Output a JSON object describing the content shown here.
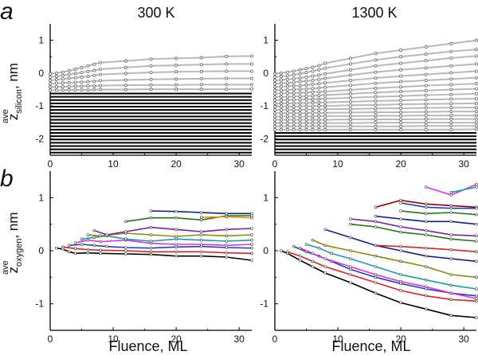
{
  "figure": {
    "panel_a": "a",
    "panel_b": "b",
    "col_left": "300 K",
    "col_right": "1300 K",
    "ylabel_a_main": "z",
    "ylabel_a_sup": "ave",
    "ylabel_a_sub": "silicon",
    "ylabel_a_unit": ", nm",
    "ylabel_b_main": "z",
    "ylabel_b_sup": "ave",
    "ylabel_b_sub": "oxygen",
    "ylabel_b_unit": ", nm",
    "xlabel_left": "Fluence, ML",
    "xlabel_right": "Fluence, ML"
  },
  "chart_data": [
    {
      "type": "line",
      "id": "a-300K",
      "xlim": [
        0,
        32
      ],
      "ylim": [
        -2.5,
        1.5
      ],
      "xticks": [
        0,
        10,
        20,
        30
      ],
      "yticks": [
        -2,
        -1,
        0,
        1
      ],
      "x": [
        0,
        1,
        2,
        3,
        4,
        5,
        6,
        7,
        8,
        12,
        16,
        20,
        24,
        28,
        32
      ],
      "black_levels": [
        -0.62,
        -0.72,
        -0.82,
        -0.92,
        -1.02,
        -1.12,
        -1.22,
        -1.32,
        -1.42,
        -1.52,
        -1.62,
        -1.72,
        -1.82,
        -1.92,
        -2.02,
        -2.12,
        -2.22,
        -2.32,
        -2.42
      ],
      "gray_series": [
        {
          "y": [
            -0.02,
            0.0,
            0.03,
            0.07,
            0.12,
            0.17,
            0.22,
            0.27,
            0.32,
            0.37,
            0.43,
            0.45,
            0.47,
            0.51,
            0.52
          ]
        },
        {
          "y": [
            -0.12,
            -0.1,
            -0.07,
            -0.04,
            -0.01,
            0.02,
            0.05,
            0.08,
            0.12,
            0.17,
            0.22,
            0.24,
            0.26,
            0.28,
            0.28
          ]
        },
        {
          "y": [
            -0.22,
            -0.2,
            -0.18,
            -0.16,
            -0.14,
            -0.12,
            -0.1,
            -0.07,
            -0.04,
            -0.01,
            0.02,
            0.04,
            0.05,
            0.06,
            0.06
          ]
        },
        {
          "y": [
            -0.32,
            -0.31,
            -0.3,
            -0.29,
            -0.28,
            -0.27,
            -0.26,
            -0.25,
            -0.23,
            -0.21,
            -0.19,
            -0.18,
            -0.17,
            -0.16,
            -0.16
          ]
        },
        {
          "y": [
            -0.42,
            -0.42,
            -0.41,
            -0.41,
            -0.4,
            -0.4,
            -0.39,
            -0.39,
            -0.38,
            -0.37,
            -0.36,
            -0.36,
            -0.35,
            -0.35,
            -0.35
          ]
        },
        {
          "y": [
            -0.52,
            -0.52,
            -0.52,
            -0.51,
            -0.51,
            -0.51,
            -0.51,
            -0.5,
            -0.5,
            -0.5,
            -0.49,
            -0.49,
            -0.49,
            -0.49,
            -0.48
          ]
        }
      ]
    },
    {
      "type": "line",
      "id": "a-1300K",
      "xlim": [
        0,
        32
      ],
      "ylim": [
        -2.5,
        1.5
      ],
      "xticks": [
        0,
        10,
        20,
        30
      ],
      "yticks": [
        -2,
        -1,
        0,
        1
      ],
      "x": [
        0,
        1,
        2,
        3,
        4,
        5,
        6,
        7,
        8,
        12,
        16,
        20,
        24,
        28,
        32
      ],
      "black_levels": [
        -1.82,
        -1.92,
        -2.02,
        -2.12,
        -2.22,
        -2.32,
        -2.42
      ],
      "gray_series": [
        {
          "y": [
            -0.02,
            0.0,
            0.03,
            0.06,
            0.1,
            0.14,
            0.18,
            0.23,
            0.3,
            0.45,
            0.6,
            0.7,
            0.8,
            0.9,
            1.0
          ]
        },
        {
          "y": [
            -0.12,
            -0.1,
            -0.08,
            -0.05,
            -0.02,
            0.02,
            0.06,
            0.1,
            0.15,
            0.28,
            0.4,
            0.5,
            0.58,
            0.66,
            0.72
          ]
        },
        {
          "y": [
            -0.22,
            -0.21,
            -0.19,
            -0.17,
            -0.15,
            -0.12,
            -0.09,
            -0.06,
            -0.02,
            0.1,
            0.22,
            0.3,
            0.38,
            0.46,
            0.52
          ]
        },
        {
          "y": [
            -0.32,
            -0.31,
            -0.3,
            -0.28,
            -0.26,
            -0.24,
            -0.22,
            -0.19,
            -0.16,
            -0.06,
            0.03,
            0.1,
            0.16,
            0.22,
            0.28
          ]
        },
        {
          "y": [
            -0.42,
            -0.41,
            -0.4,
            -0.39,
            -0.38,
            -0.36,
            -0.34,
            -0.32,
            -0.3,
            -0.22,
            -0.15,
            -0.09,
            -0.04,
            0.01,
            0.06
          ]
        },
        {
          "y": [
            -0.52,
            -0.52,
            -0.51,
            -0.5,
            -0.49,
            -0.48,
            -0.47,
            -0.45,
            -0.43,
            -0.37,
            -0.31,
            -0.26,
            -0.22,
            -0.18,
            -0.14
          ]
        },
        {
          "y": [
            -0.62,
            -0.62,
            -0.61,
            -0.61,
            -0.6,
            -0.59,
            -0.58,
            -0.57,
            -0.56,
            -0.51,
            -0.46,
            -0.42,
            -0.38,
            -0.35,
            -0.32
          ]
        },
        {
          "y": [
            -0.72,
            -0.72,
            -0.72,
            -0.71,
            -0.71,
            -0.7,
            -0.69,
            -0.68,
            -0.67,
            -0.63,
            -0.59,
            -0.56,
            -0.53,
            -0.5,
            -0.48
          ]
        },
        {
          "y": [
            -0.82,
            -0.82,
            -0.82,
            -0.81,
            -0.81,
            -0.8,
            -0.8,
            -0.79,
            -0.78,
            -0.75,
            -0.72,
            -0.7,
            -0.67,
            -0.65,
            -0.63
          ]
        },
        {
          "y": [
            -0.92,
            -0.92,
            -0.92,
            -0.92,
            -0.91,
            -0.91,
            -0.9,
            -0.9,
            -0.89,
            -0.87,
            -0.85,
            -0.83,
            -0.81,
            -0.79,
            -0.78
          ]
        },
        {
          "y": [
            -1.02,
            -1.02,
            -1.02,
            -1.02,
            -1.01,
            -1.01,
            -1.01,
            -1.0,
            -1.0,
            -0.98,
            -0.97,
            -0.95,
            -0.94,
            -0.93,
            -0.92
          ]
        },
        {
          "y": [
            -1.12,
            -1.12,
            -1.12,
            -1.12,
            -1.12,
            -1.11,
            -1.11,
            -1.11,
            -1.1,
            -1.09,
            -1.08,
            -1.07,
            -1.06,
            -1.05,
            -1.05
          ]
        },
        {
          "y": [
            -1.22,
            -1.22,
            -1.22,
            -1.22,
            -1.22,
            -1.22,
            -1.21,
            -1.21,
            -1.21,
            -1.2,
            -1.19,
            -1.19,
            -1.18,
            -1.17,
            -1.17
          ]
        },
        {
          "y": [
            -1.32,
            -1.32,
            -1.32,
            -1.32,
            -1.32,
            -1.32,
            -1.32,
            -1.31,
            -1.31,
            -1.31,
            -1.3,
            -1.3,
            -1.29,
            -1.29,
            -1.29
          ]
        },
        {
          "y": [
            -1.42,
            -1.42,
            -1.42,
            -1.42,
            -1.42,
            -1.42,
            -1.42,
            -1.42,
            -1.42,
            -1.41,
            -1.41,
            -1.41,
            -1.4,
            -1.4,
            -1.4
          ]
        },
        {
          "y": [
            -1.52,
            -1.52,
            -1.52,
            -1.52,
            -1.52,
            -1.52,
            -1.52,
            -1.52,
            -1.52,
            -1.52,
            -1.51,
            -1.51,
            -1.51,
            -1.51,
            -1.51
          ]
        },
        {
          "y": [
            -1.62,
            -1.62,
            -1.62,
            -1.62,
            -1.62,
            -1.62,
            -1.62,
            -1.62,
            -1.62,
            -1.62,
            -1.62,
            -1.62,
            -1.61,
            -1.61,
            -1.61
          ]
        },
        {
          "y": [
            -1.72,
            -1.72,
            -1.72,
            -1.72,
            -1.72,
            -1.72,
            -1.72,
            -1.72,
            -1.72,
            -1.72,
            -1.72,
            -1.72,
            -1.72,
            -1.72,
            -1.71
          ]
        }
      ]
    },
    {
      "type": "line",
      "id": "b-300K",
      "xlim": [
        0,
        32
      ],
      "ylim": [
        -1.5,
        1.5
      ],
      "xticks": [
        0,
        10,
        20,
        30
      ],
      "yticks": [
        -1,
        0,
        1
      ],
      "series": [
        {
          "color": "#000000",
          "x": [
            1,
            2,
            3,
            4,
            6,
            8,
            12,
            16,
            20,
            24,
            28,
            32
          ],
          "y": [
            0.05,
            0.03,
            -0.02,
            -0.05,
            -0.04,
            -0.05,
            -0.06,
            -0.07,
            -0.1,
            -0.1,
            -0.12,
            -0.18
          ]
        },
        {
          "color": "#e02020",
          "x": [
            2,
            4,
            6,
            8,
            12,
            16,
            20,
            24,
            28,
            32
          ],
          "y": [
            0.07,
            0.04,
            0.02,
            0.01,
            0.0,
            -0.02,
            -0.02,
            -0.02,
            -0.04,
            -0.05
          ]
        },
        {
          "color": "#1f3fbf",
          "x": [
            3,
            5,
            7,
            9,
            12,
            16,
            20,
            24,
            28,
            32
          ],
          "y": [
            0.1,
            0.12,
            0.1,
            0.08,
            0.06,
            0.05,
            0.07,
            0.08,
            0.06,
            0.05
          ]
        },
        {
          "color": "#e030e0",
          "x": [
            4,
            6,
            8,
            12,
            16,
            20,
            24,
            28,
            32
          ],
          "y": [
            0.15,
            0.2,
            0.17,
            0.2,
            0.14,
            0.12,
            0.12,
            0.1,
            0.12
          ]
        },
        {
          "color": "#10a0b0",
          "x": [
            5,
            7,
            9,
            12,
            16,
            20,
            24,
            28,
            32
          ],
          "y": [
            0.22,
            0.25,
            0.28,
            0.22,
            0.18,
            0.22,
            0.2,
            0.18,
            0.2
          ]
        },
        {
          "color": "#8b8b00",
          "x": [
            6,
            8,
            12,
            16,
            20,
            24,
            28,
            32
          ],
          "y": [
            0.3,
            0.28,
            0.33,
            0.3,
            0.27,
            0.3,
            0.28,
            0.3
          ]
        },
        {
          "color": "#7b1fa2",
          "x": [
            7,
            9,
            12,
            16,
            20,
            24,
            28,
            32
          ],
          "y": [
            0.38,
            0.3,
            0.36,
            0.44,
            0.4,
            0.36,
            0.4,
            0.42
          ]
        },
        {
          "color": "#1a7a1a",
          "x": [
            12,
            16,
            20,
            24,
            28,
            32
          ],
          "y": [
            0.55,
            0.62,
            0.62,
            0.58,
            0.66,
            0.66
          ]
        },
        {
          "color": "#0b1f8f",
          "x": [
            16,
            20,
            24,
            28,
            32
          ],
          "y": [
            0.75,
            0.74,
            0.72,
            0.7,
            0.7
          ]
        },
        {
          "color": "#ff8c00",
          "x": [
            24,
            28,
            32
          ],
          "y": [
            0.63,
            0.64,
            0.62
          ]
        }
      ]
    },
    {
      "type": "line",
      "id": "b-1300K",
      "xlim": [
        0,
        32
      ],
      "ylim": [
        -1.5,
        1.5
      ],
      "xticks": [
        0,
        10,
        20,
        30
      ],
      "yticks": [
        -1,
        0,
        1
      ],
      "series": [
        {
          "color": "#000000",
          "x": [
            1,
            2,
            4,
            6,
            8,
            12,
            16,
            20,
            24,
            28,
            32
          ],
          "y": [
            0.0,
            -0.05,
            -0.18,
            -0.3,
            -0.42,
            -0.6,
            -0.8,
            -0.98,
            -1.1,
            -1.22,
            -1.26
          ]
        },
        {
          "color": "#e02020",
          "x": [
            2,
            4,
            6,
            8,
            12,
            16,
            20,
            24,
            28,
            32
          ],
          "y": [
            -0.02,
            -0.1,
            -0.2,
            -0.3,
            -0.45,
            -0.6,
            -0.75,
            -0.85,
            -0.92,
            -0.95
          ]
        },
        {
          "color": "#1f3fbf",
          "x": [
            3,
            5,
            7,
            9,
            12,
            16,
            20,
            24,
            28,
            32
          ],
          "y": [
            0.08,
            -0.02,
            -0.1,
            -0.2,
            -0.35,
            -0.5,
            -0.62,
            -0.72,
            -0.8,
            -0.85
          ]
        },
        {
          "color": "#e030e0",
          "x": [
            4,
            6,
            8,
            12,
            16,
            20,
            24,
            28,
            32
          ],
          "y": [
            0.05,
            -0.05,
            -0.15,
            -0.3,
            -0.45,
            -0.58,
            -0.68,
            -0.8,
            -0.9
          ]
        },
        {
          "color": "#10a0b0",
          "x": [
            5,
            7,
            9,
            12,
            16,
            20,
            24,
            28,
            32
          ],
          "y": [
            0.12,
            0.05,
            -0.05,
            -0.15,
            -0.3,
            -0.45,
            -0.55,
            -0.65,
            -0.72
          ]
        },
        {
          "color": "#8b8b00",
          "x": [
            6,
            8,
            12,
            16,
            20,
            24,
            28,
            32
          ],
          "y": [
            0.2,
            0.1,
            0.0,
            -0.1,
            -0.2,
            -0.3,
            -0.45,
            -0.5
          ]
        },
        {
          "color": "#0b1f8f",
          "x": [
            8,
            12,
            16,
            20,
            24,
            28,
            32
          ],
          "y": [
            0.4,
            0.25,
            0.1,
            0.0,
            -0.1,
            -0.15,
            -0.2
          ]
        },
        {
          "color": "#7b1fa2",
          "x": [
            12,
            16,
            20,
            24,
            28,
            32
          ],
          "y": [
            0.6,
            0.55,
            0.45,
            0.38,
            0.3,
            0.28
          ]
        },
        {
          "color": "#1a7a1a",
          "x": [
            12,
            16,
            20,
            24,
            28,
            32
          ],
          "y": [
            0.5,
            0.45,
            0.35,
            0.3,
            0.22,
            0.18
          ]
        },
        {
          "color": "#e02020",
          "x": [
            16,
            20,
            24,
            28,
            32
          ],
          "y": [
            0.1,
            0.08,
            0.05,
            0.02,
            -0.02
          ]
        },
        {
          "color": "#0b1f8f",
          "x": [
            16,
            20,
            24,
            28,
            32
          ],
          "y": [
            0.65,
            0.6,
            0.55,
            0.55,
            0.5
          ]
        },
        {
          "color": "#1a7a1a",
          "x": [
            20,
            24,
            28,
            32
          ],
          "y": [
            0.75,
            0.7,
            0.72,
            0.68
          ]
        },
        {
          "color": "#8b0000",
          "x": [
            16,
            20,
            24,
            28,
            32
          ],
          "y": [
            0.82,
            0.95,
            0.88,
            0.85,
            0.82
          ]
        },
        {
          "color": "#1f3fbf",
          "x": [
            20,
            24,
            28,
            32
          ],
          "y": [
            0.9,
            0.82,
            0.8,
            0.8
          ]
        },
        {
          "color": "#e030e0",
          "x": [
            24,
            28,
            32
          ],
          "y": [
            1.2,
            1.05,
            1.25
          ]
        },
        {
          "color": "#10a0b0",
          "x": [
            28,
            32
          ],
          "y": [
            1.1,
            1.2
          ]
        }
      ]
    }
  ]
}
